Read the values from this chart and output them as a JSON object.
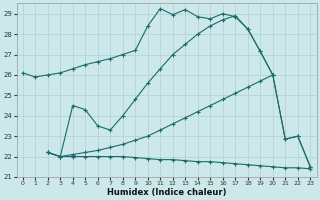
{
  "xlabel": "Humidex (Indice chaleur)",
  "bg_color": "#cce8ea",
  "line_color": "#1a6b6b",
  "grid_color": "#b0d0d4",
  "xlim": [
    -0.5,
    23.5
  ],
  "ylim": [
    21,
    29.5
  ],
  "yticks": [
    21,
    22,
    23,
    24,
    25,
    26,
    27,
    28,
    29
  ],
  "xticks": [
    0,
    1,
    2,
    3,
    4,
    5,
    6,
    7,
    8,
    9,
    10,
    11,
    12,
    13,
    14,
    15,
    16,
    17,
    18,
    19,
    20,
    21,
    22,
    23
  ],
  "line1_x": [
    0,
    1,
    2,
    3,
    4,
    5,
    6,
    7,
    8,
    9,
    10,
    11,
    12,
    13,
    14,
    15,
    16,
    17,
    18,
    19,
    20,
    21,
    22,
    23
  ],
  "line1_y": [
    26.1,
    25.9,
    26.0,
    26.1,
    26.3,
    26.5,
    26.65,
    26.8,
    27.0,
    27.2,
    28.4,
    29.25,
    28.95,
    29.2,
    28.85,
    28.75,
    29.0,
    28.85,
    28.25,
    27.15,
    26.0,
    22.85,
    23.0,
    21.5
  ],
  "line2_x": [
    2,
    3,
    4,
    5,
    6,
    7,
    8,
    9,
    10,
    11,
    12,
    13,
    14,
    15,
    16,
    17,
    18,
    19,
    20,
    21,
    22,
    23
  ],
  "line2_y": [
    22.2,
    22.0,
    24.5,
    24.3,
    23.5,
    23.3,
    24.0,
    24.8,
    25.6,
    26.3,
    27.0,
    27.5,
    28.0,
    28.4,
    28.7,
    28.9,
    28.25,
    27.15,
    26.0,
    22.85,
    23.0,
    21.5
  ],
  "line3_x": [
    2,
    3,
    4,
    5,
    6,
    7,
    8,
    9,
    10,
    11,
    12,
    13,
    14,
    15,
    16,
    17,
    18,
    19,
    20
  ],
  "line3_y": [
    22.2,
    22.0,
    22.1,
    22.2,
    22.3,
    22.45,
    22.6,
    22.8,
    23.0,
    23.3,
    23.6,
    23.9,
    24.2,
    24.5,
    24.8,
    25.1,
    25.4,
    25.7,
    26.0
  ],
  "line4_x": [
    2,
    3,
    4,
    5,
    6,
    7,
    8,
    9,
    10,
    11,
    12,
    13,
    14,
    15,
    16,
    17,
    18,
    19,
    20,
    21,
    22,
    23
  ],
  "line4_y": [
    22.2,
    22.0,
    22.0,
    22.0,
    22.0,
    22.0,
    22.0,
    21.95,
    21.9,
    21.85,
    21.85,
    21.8,
    21.75,
    21.75,
    21.7,
    21.65,
    21.6,
    21.55,
    21.5,
    21.45,
    21.45,
    21.4
  ]
}
